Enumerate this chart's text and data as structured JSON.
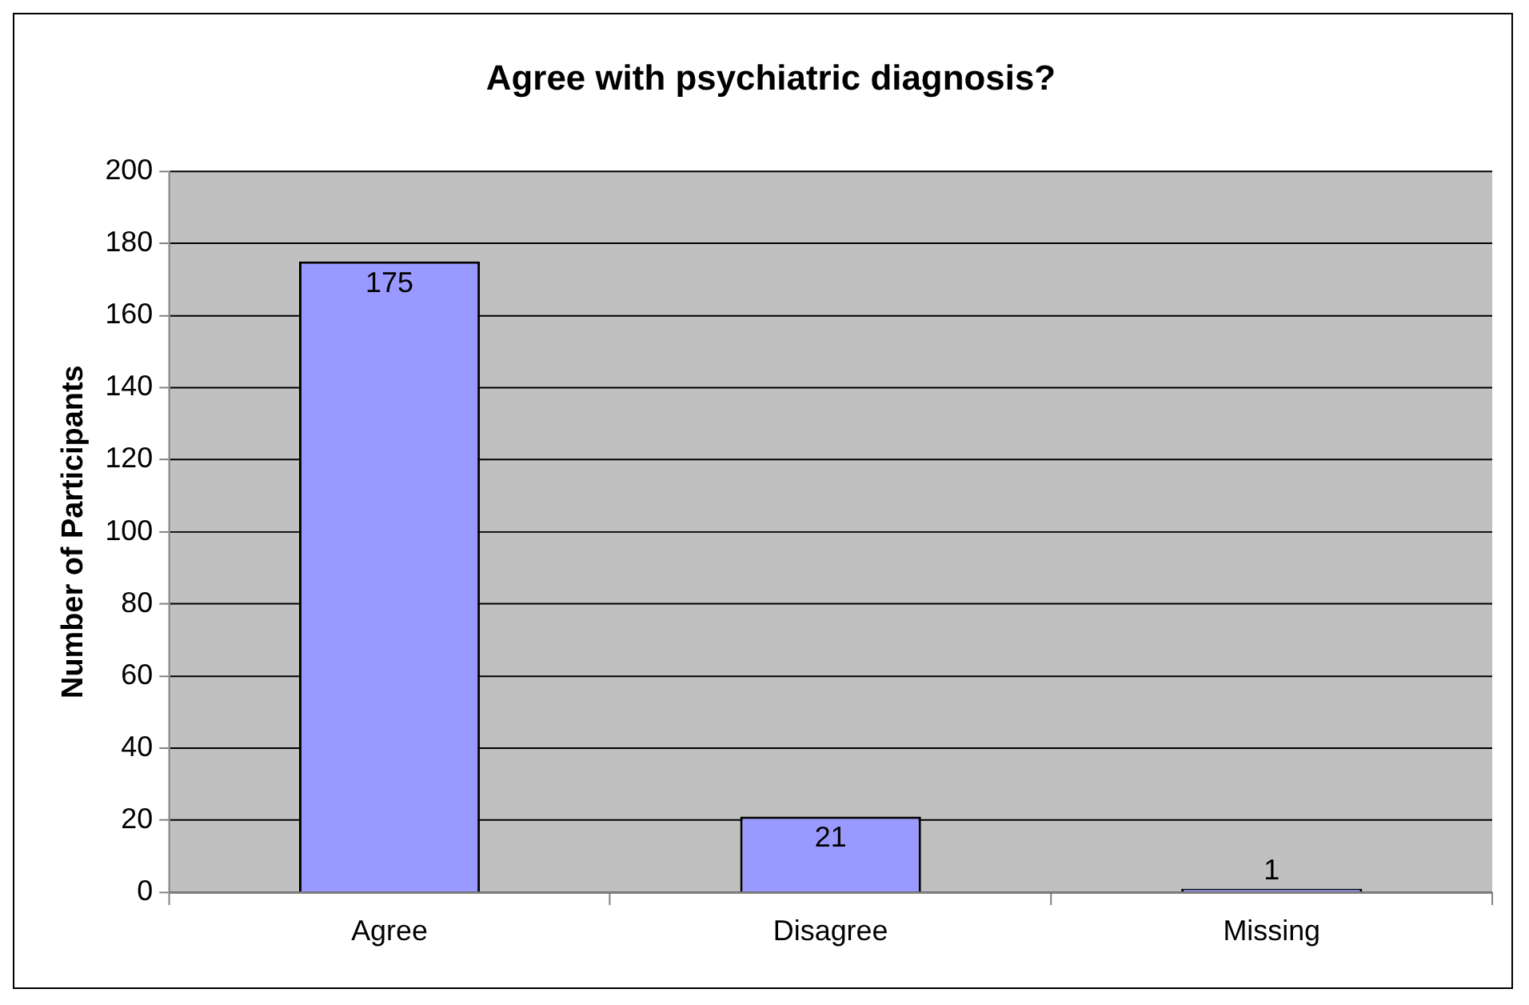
{
  "chart_data": {
    "type": "bar",
    "title": "Agree with psychiatric diagnosis?",
    "ylabel": "Number of Participants",
    "categories": [
      "Agree",
      "Disagree",
      "Missing"
    ],
    "values": [
      175,
      21,
      1
    ],
    "color": "#9999ff",
    "ylim": [
      0,
      200
    ],
    "yticks": [
      0,
      20,
      40,
      60,
      80,
      100,
      120,
      140,
      160,
      180,
      200
    ],
    "grid": "y",
    "data_labels": true,
    "legend": false
  }
}
